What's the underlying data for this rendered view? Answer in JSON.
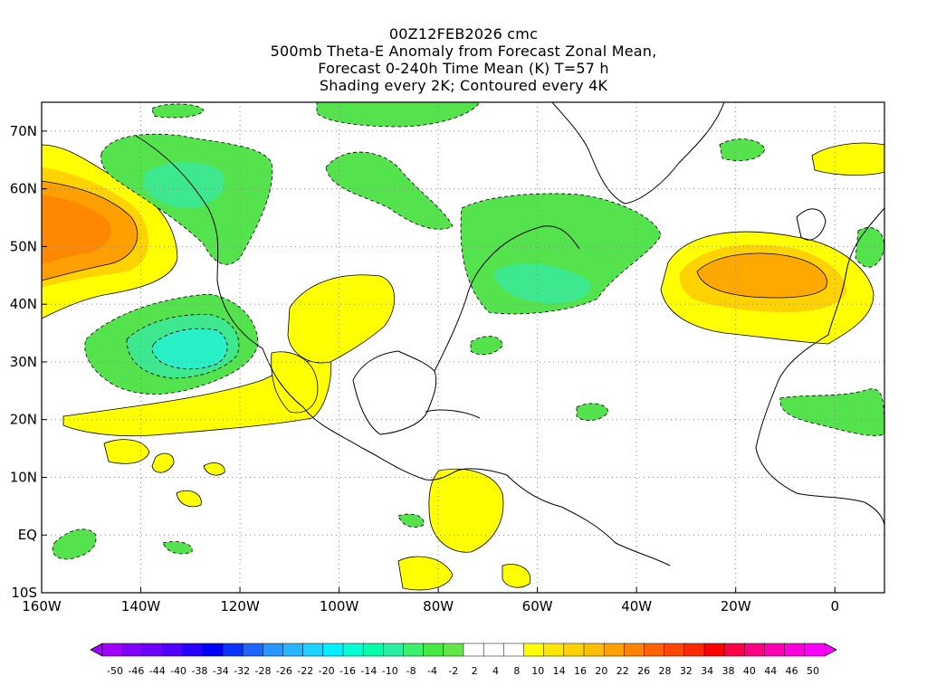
{
  "title": {
    "lines": [
      "00Z12FEB2026 cmc",
      "500mb Theta-E Anomaly from Forecast Zonal Mean,",
      "Forecast 0-240h Time Mean (K) T=57 h",
      "Shading every 2K; Contoured every 4K"
    ]
  },
  "map": {
    "lon_range": [
      -160,
      10
    ],
    "lat_range": [
      -10,
      75
    ],
    "lon_ticks": [
      {
        "value": -160,
        "label": "160W"
      },
      {
        "value": -140,
        "label": "140W"
      },
      {
        "value": -120,
        "label": "120W"
      },
      {
        "value": -100,
        "label": "100W"
      },
      {
        "value": -80,
        "label": "80W"
      },
      {
        "value": -60,
        "label": "60W"
      },
      {
        "value": -40,
        "label": "40W"
      },
      {
        "value": -20,
        "label": "20W"
      },
      {
        "value": 0,
        "label": "0"
      }
    ],
    "lat_ticks": [
      {
        "value": 70,
        "label": "70N"
      },
      {
        "value": 60,
        "label": "60N"
      },
      {
        "value": 50,
        "label": "50N"
      },
      {
        "value": 40,
        "label": "40N"
      },
      {
        "value": 30,
        "label": "30N"
      },
      {
        "value": 20,
        "label": "20N"
      },
      {
        "value": 10,
        "label": "10N"
      },
      {
        "value": 0,
        "label": "EQ"
      },
      {
        "value": -10,
        "label": "10S"
      }
    ],
    "grid": true
  },
  "colorbar": {
    "labels": [
      "-50",
      "-46",
      "-44",
      "-40",
      "-38",
      "-34",
      "-32",
      "-28",
      "-26",
      "-22",
      "-20",
      "-16",
      "-14",
      "-10",
      "-8",
      "-4",
      "-2",
      "2",
      "4",
      "8",
      "10",
      "14",
      "16",
      "20",
      "22",
      "26",
      "28",
      "32",
      "34",
      "38",
      "40",
      "44",
      "46",
      "50"
    ],
    "colors": [
      "#a000ff",
      "#8200ff",
      "#6e00ff",
      "#5000ff",
      "#2800ff",
      "#0000ff",
      "#0a32ff",
      "#1e64ff",
      "#2896ff",
      "#28b4ff",
      "#1ed2ff",
      "#00f0ff",
      "#00ffd2",
      "#00ffaa",
      "#28f0a0",
      "#3cf06e",
      "#46e846",
      "#64e646",
      "#ffffff",
      "#ffffff",
      "#ffffff",
      "#ffff00",
      "#ffe600",
      "#ffd200",
      "#ffbe00",
      "#ffa000",
      "#ff8200",
      "#ff6400",
      "#ff4600",
      "#ff2800",
      "#ff0000",
      "#ff0046",
      "#ff0082",
      "#ff00b4",
      "#ff00dc",
      "#ff00ff"
    ]
  },
  "anomaly_regions": [
    {
      "name": "NE Pacific warm anomaly",
      "level": 16,
      "color": "#ff9600"
    },
    {
      "name": "E Atlantic warm anomaly",
      "level": 16,
      "color": "#ff9600"
    },
    {
      "name": "Subtropical E Pacific cool anomaly",
      "level": -18,
      "color": "#2af0c8"
    },
    {
      "name": "NW Canada cool anomaly",
      "level": -12,
      "color": "#44ee88"
    },
    {
      "name": "Newfoundland cool anomaly",
      "level": -10,
      "color": "#44e866"
    }
  ]
}
